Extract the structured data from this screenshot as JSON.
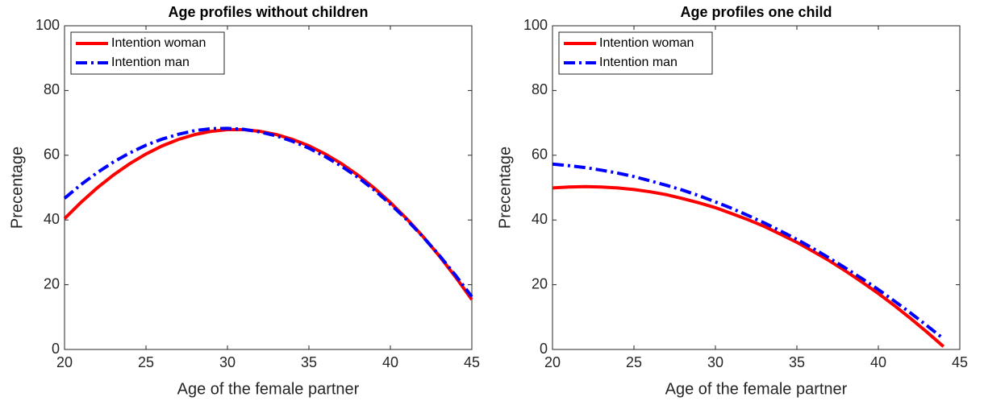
{
  "chart_data": [
    {
      "type": "line",
      "title": "Age profiles without children",
      "xlabel": "Age of the female partner",
      "ylabel": "Precentage",
      "x": [
        20,
        21,
        22,
        23,
        24,
        25,
        26,
        27,
        28,
        29,
        30,
        31,
        32,
        33,
        34,
        35,
        36,
        37,
        38,
        39,
        40,
        41,
        42,
        43,
        44,
        45
      ],
      "series": [
        {
          "name": "Intention woman",
          "color": "#ff0000",
          "dash": "solid",
          "values": [
            40.4,
            45.4,
            49.9,
            53.9,
            57.4,
            60.4,
            62.9,
            64.9,
            66.4,
            67.4,
            67.9,
            67.9,
            67.4,
            66.4,
            64.9,
            62.9,
            60.4,
            57.4,
            53.9,
            49.9,
            45.4,
            40.4,
            34.9,
            28.9,
            22.4,
            15.4
          ]
        },
        {
          "name": "Intention man",
          "color": "#0000ff",
          "dash": "dashdot",
          "values": [
            46.7,
            50.9,
            54.6,
            57.9,
            60.7,
            63.1,
            65.0,
            66.5,
            67.6,
            68.2,
            68.3,
            68.0,
            67.2,
            66.0,
            64.3,
            62.2,
            59.6,
            56.6,
            53.2,
            49.3,
            44.9,
            40.1,
            34.8,
            29.1,
            22.9,
            16.3
          ]
        }
      ],
      "xlim": [
        20,
        45
      ],
      "xticks": [
        20,
        25,
        30,
        35,
        40,
        45
      ],
      "ylim": [
        0,
        100
      ],
      "yticks": [
        0,
        20,
        40,
        60,
        80,
        100
      ],
      "legend": "upper left"
    },
    {
      "type": "line",
      "title": "Age profiles one child",
      "xlabel": "Age of the female partner",
      "ylabel": "Precentage",
      "x": [
        20,
        21,
        22,
        23,
        24,
        25,
        26,
        27,
        28,
        29,
        30,
        31,
        32,
        33,
        34,
        35,
        36,
        37,
        38,
        39,
        40,
        41,
        42,
        43,
        44,
        45
      ],
      "series": [
        {
          "name": "Intention woman",
          "color": "#ff0000",
          "dash": "solid",
          "values": [
            49.9,
            50.2,
            50.3,
            50.2,
            49.9,
            49.4,
            48.7,
            47.8,
            46.6,
            45.3,
            43.8,
            42.0,
            40.1,
            38.0,
            35.6,
            33.1,
            30.3,
            27.4,
            24.2,
            20.8,
            17.3,
            13.5,
            9.5,
            5.3,
            0.9,
            null
          ]
        },
        {
          "name": "Intention man",
          "color": "#0000ff",
          "dash": "dashdot",
          "values": [
            57.3,
            56.8,
            56.2,
            55.4,
            54.5,
            53.4,
            52.1,
            50.7,
            49.2,
            47.5,
            45.6,
            43.6,
            41.4,
            39.1,
            36.6,
            34.0,
            31.2,
            28.2,
            25.1,
            21.9,
            18.5,
            14.9,
            11.2,
            7.3,
            3.3,
            null
          ]
        }
      ],
      "xlim": [
        20,
        45
      ],
      "xticks": [
        20,
        25,
        30,
        35,
        40,
        45
      ],
      "ylim": [
        0,
        100
      ],
      "yticks": [
        0,
        20,
        40,
        60,
        80,
        100
      ],
      "legend": "upper left"
    }
  ]
}
